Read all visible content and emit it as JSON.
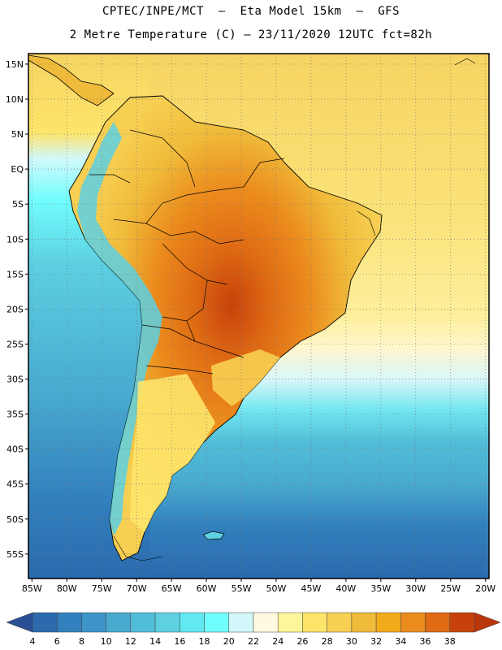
{
  "title_line1": "CPTEC/INPE/MCT  –  Eta Model 15km  –  GFS",
  "title_line2": "2 Metre Temperature (C) – 23/11/2020 12UTC fct=82h",
  "lat_labels": [
    "15N",
    "10N",
    "5N",
    "EQ",
    "5S",
    "10S",
    "15S",
    "20S",
    "25S",
    "30S",
    "35S",
    "40S",
    "45S",
    "50S",
    "55S"
  ],
  "lon_labels": [
    "85W",
    "80W",
    "75W",
    "70W",
    "65W",
    "60W",
    "55W",
    "50W",
    "45W",
    "40W",
    "35W",
    "30W",
    "25W",
    "20W"
  ],
  "lat_values": [
    15,
    10,
    5,
    0,
    -5,
    -10,
    -15,
    -20,
    -25,
    -30,
    -35,
    -40,
    -45,
    -50,
    -55
  ],
  "lon_values": [
    -85,
    -80,
    -75,
    -70,
    -65,
    -60,
    -55,
    -50,
    -45,
    -40,
    -35,
    -30,
    -25,
    -20
  ],
  "extent": {
    "lon_min": -85.5,
    "lon_max": -19.5,
    "lat_min": -58.5,
    "lat_max": 16.5
  },
  "colorbar": {
    "values": [
      "4",
      "6",
      "8",
      "10",
      "12",
      "14",
      "16",
      "18",
      "20",
      "22",
      "24",
      "26",
      "28",
      "30",
      "32",
      "34",
      "36",
      "38"
    ],
    "colors": [
      "#2a6aad",
      "#3280bd",
      "#3d95c8",
      "#48aacf",
      "#52bdd8",
      "#5dd0e2",
      "#61e8f0",
      "#70fdfd",
      "#d2f8fb",
      "#fff9e0",
      "#fef69a",
      "#fde46a",
      "#f7cf52",
      "#f0bb3a",
      "#f2a91a",
      "#eb8b1d",
      "#df6b14",
      "#c7420b"
    ],
    "low_color": "#2a4f94",
    "high_color": "#b8360a"
  },
  "colors": {
    "ocean_tropical": "#f4cc5a",
    "ocean_warm": "#fbe278",
    "ocean_mild": "#fff6c8",
    "ocean_cool": "#d2f8fb",
    "ocean_cold1": "#5dd0e2",
    "ocean_cold2": "#48aacf",
    "ocean_cold3": "#3280bd",
    "ocean_cold4": "#2a6aad",
    "land_hot": "#c7420b",
    "land_warm": "#e8a02e",
    "land_andes": "#5dd0e2",
    "land_patagonia": "#fde46a"
  }
}
